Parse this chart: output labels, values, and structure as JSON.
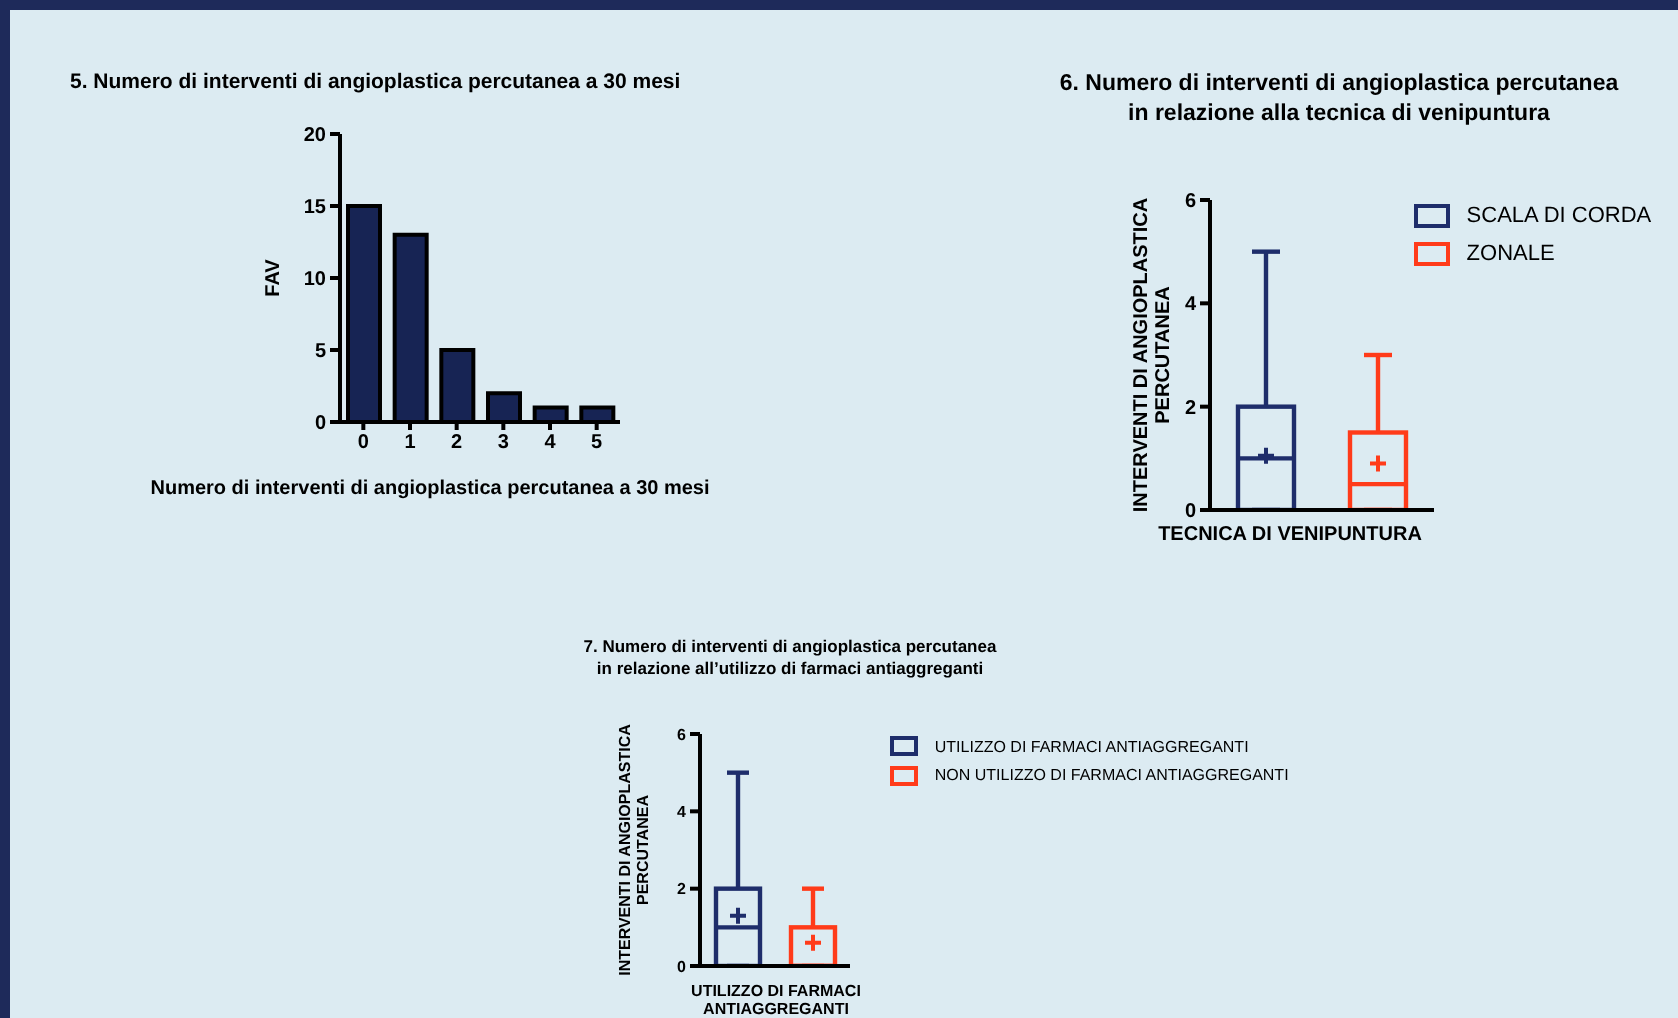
{
  "chart_data": [
    {
      "type": "bar",
      "title": "5. Numero di interventi di angioplastica percutanea a 30 mesi",
      "xlabel": "Numero di interventi di angioplastica percutanea a 30 mesi",
      "ylabel": "FAV",
      "categories": [
        "0",
        "1",
        "2",
        "3",
        "4",
        "5"
      ],
      "values": [
        15,
        13,
        5,
        2,
        1,
        1
      ],
      "color": "#172454",
      "ylim": [
        0,
        20
      ],
      "yticks": [
        0,
        5,
        10,
        15,
        20
      ]
    },
    {
      "type": "box",
      "title": "6. Numero di interventi di angioplastica percutanea in relazione alla tecnica di venipuntura",
      "xlabel": "TECNICA DI VENIPUNTURA",
      "ylabel": "INTERVENTI DI ANGIOPLASTICA PERCUTANEA",
      "categories": [
        null,
        null
      ],
      "ylim": [
        0,
        6
      ],
      "yticks": [
        0,
        2,
        4,
        6
      ],
      "legend": "right",
      "series": [
        {
          "name": "SCALA DI CORDA",
          "color": "#1e2d6b",
          "boxes": [
            {
              "low": 0,
              "q1": 0,
              "median": 1,
              "q3": 2,
              "high": 5,
              "mean": 1.05
            },
            null
          ]
        },
        {
          "name": "ZONALE",
          "color": "#ff3b1a",
          "boxes": [
            null,
            {
              "low": 0,
              "q1": 0,
              "median": 0.5,
              "q3": 1.5,
              "high": 3,
              "mean": 0.9
            }
          ]
        }
      ]
    },
    {
      "type": "box",
      "title": "7. Numero di interventi di angioplastica percutanea in relazione all’utilizzo di farmaci antiaggreganti",
      "xlabel": "UTILIZZO DI FARMACI ANTIAGGREGANTI",
      "ylabel": "INTERVENTI DI ANGIOPLASTICA PERCUTANEA",
      "categories": [
        null,
        null
      ],
      "ylim": [
        0,
        6
      ],
      "yticks": [
        0,
        2,
        4,
        6
      ],
      "legend": "right",
      "series": [
        {
          "name": "UTILIZZO DI FARMACI ANTIAGGREGANTI",
          "color": "#1e2d6b",
          "boxes": [
            {
              "low": 0,
              "q1": 0,
              "median": 1,
              "q3": 2,
              "high": 5,
              "mean": 1.3
            },
            null
          ]
        },
        {
          "name": "NON UTILIZZO DI FARMACI ANTIAGGREGANTI",
          "color": "#ff3b1a",
          "boxes": [
            null,
            {
              "low": 0,
              "q1": 0,
              "median": 0,
              "q3": 1,
              "high": 2,
              "mean": 0.6
            }
          ]
        }
      ]
    }
  ]
}
